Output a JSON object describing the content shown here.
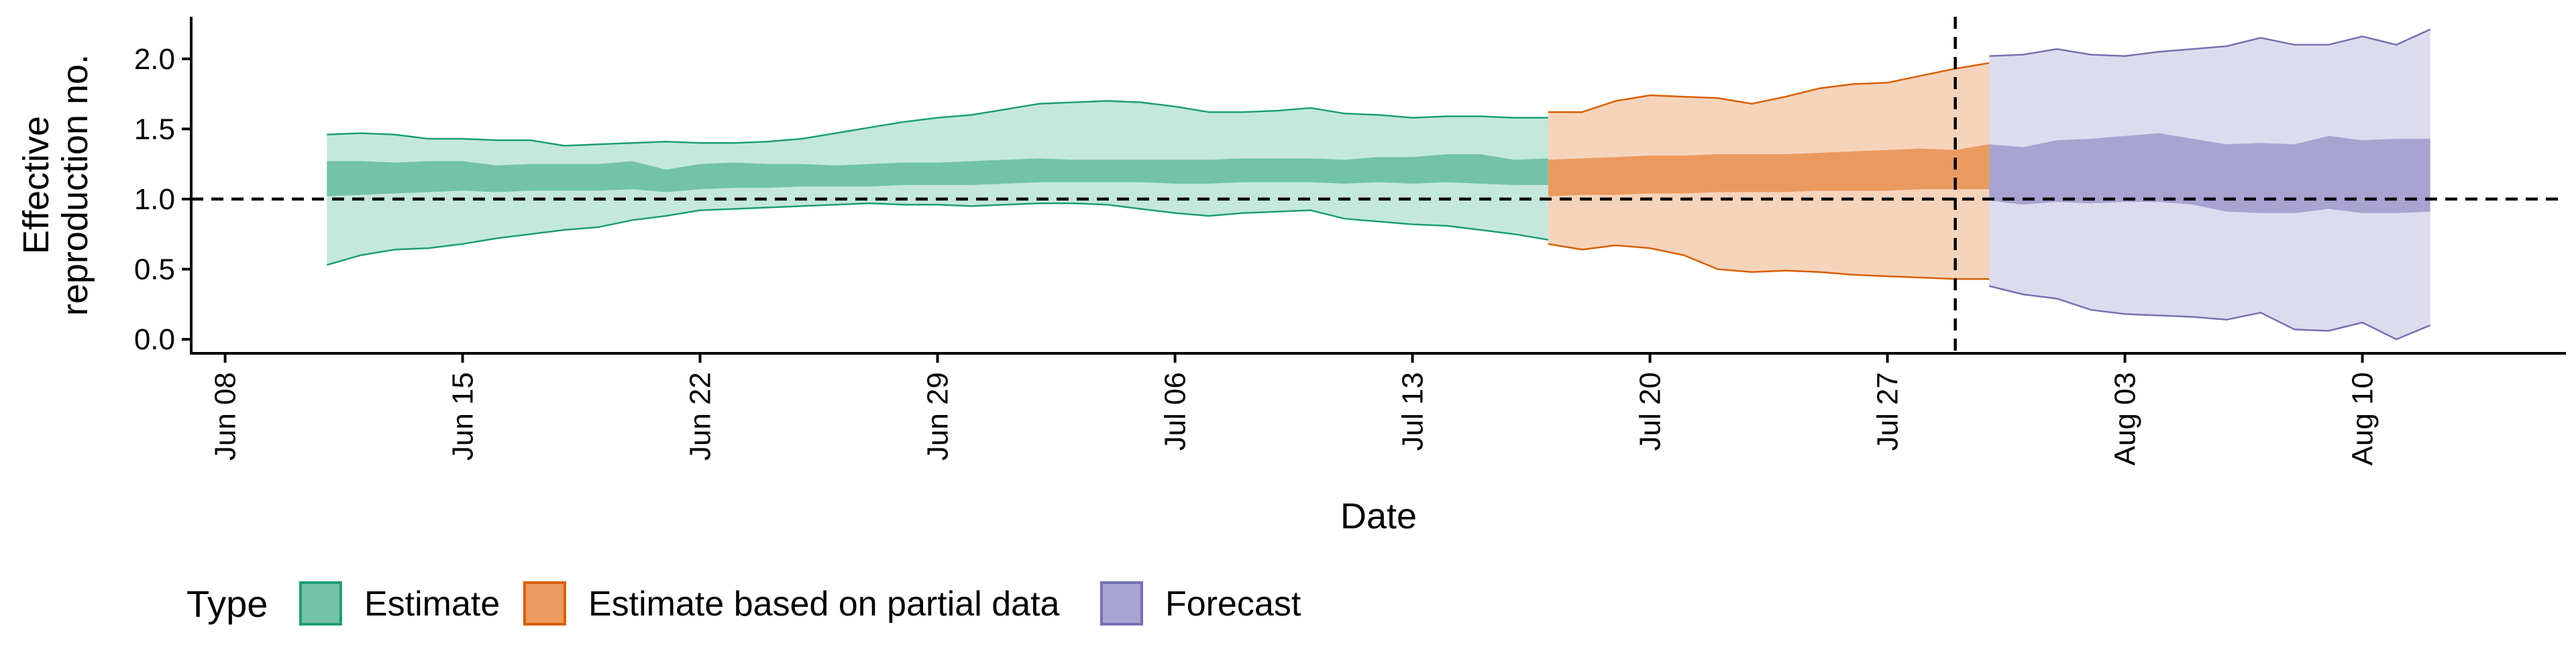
{
  "chart_data": {
    "type": "area",
    "title": "",
    "xlabel": "Date",
    "ylabel_lines": [
      "Effective",
      "reproduction no."
    ],
    "ylim": [
      -0.1,
      2.3
    ],
    "xlim": [
      "2020-06-07",
      "2020-08-16"
    ],
    "y_ticks": [
      {
        "value": 0.0,
        "label": "0.0"
      },
      {
        "value": 0.5,
        "label": "0.5"
      },
      {
        "value": 1.0,
        "label": "1.0"
      },
      {
        "value": 1.5,
        "label": "1.5"
      },
      {
        "value": 2.0,
        "label": "2.0"
      }
    ],
    "x_ticks": [
      {
        "date": "2020-06-08",
        "label": "Jun 08"
      },
      {
        "date": "2020-06-15",
        "label": "Jun 15"
      },
      {
        "date": "2020-06-22",
        "label": "Jun 22"
      },
      {
        "date": "2020-06-29",
        "label": "Jun 29"
      },
      {
        "date": "2020-07-06",
        "label": "Jul 06"
      },
      {
        "date": "2020-07-13",
        "label": "Jul 13"
      },
      {
        "date": "2020-07-20",
        "label": "Jul 20"
      },
      {
        "date": "2020-07-27",
        "label": "Jul 27"
      },
      {
        "date": "2020-08-03",
        "label": "Aug 03"
      },
      {
        "date": "2020-08-10",
        "label": "Aug 10"
      }
    ],
    "reference_line_y": 1.0,
    "vertical_line_date": "2020-07-29",
    "grid": false,
    "legend": {
      "title": "Type",
      "position": "bottom",
      "entries": [
        {
          "label": "Estimate",
          "fill": "#72c3a8",
          "border": "#1b9e77"
        },
        {
          "label": "Estimate based on partial data",
          "fill": "#eb9a5f",
          "border": "#d95f02"
        },
        {
          "label": "Forecast",
          "fill": "#a8a3d1",
          "border": "#7570b3"
        }
      ]
    },
    "series": [
      {
        "name": "Estimate",
        "outer_color": "#c5e8dc",
        "inner_color": "#72c3a8",
        "line_color": "#1b9e77",
        "start_date": "2020-06-11",
        "outer_upper": [
          1.46,
          1.47,
          1.46,
          1.43,
          1.43,
          1.42,
          1.42,
          1.38,
          1.39,
          1.4,
          1.41,
          1.4,
          1.4,
          1.41,
          1.43,
          1.47,
          1.51,
          1.55,
          1.58,
          1.6,
          1.64,
          1.68,
          1.69,
          1.7,
          1.69,
          1.66,
          1.62,
          1.62,
          1.63,
          1.65,
          1.61,
          1.6,
          1.58,
          1.59,
          1.59,
          1.58,
          1.58
        ],
        "outer_lower": [
          0.53,
          0.6,
          0.64,
          0.65,
          0.68,
          0.72,
          0.75,
          0.78,
          0.8,
          0.85,
          0.88,
          0.92,
          0.93,
          0.94,
          0.95,
          0.96,
          0.97,
          0.96,
          0.96,
          0.95,
          0.96,
          0.97,
          0.97,
          0.96,
          0.93,
          0.9,
          0.88,
          0.9,
          0.91,
          0.92,
          0.86,
          0.84,
          0.82,
          0.81,
          0.78,
          0.75,
          0.71
        ],
        "inner_upper": [
          1.27,
          1.27,
          1.26,
          1.27,
          1.27,
          1.24,
          1.25,
          1.25,
          1.25,
          1.27,
          1.21,
          1.25,
          1.26,
          1.25,
          1.25,
          1.24,
          1.25,
          1.26,
          1.26,
          1.27,
          1.28,
          1.29,
          1.28,
          1.28,
          1.28,
          1.28,
          1.28,
          1.29,
          1.29,
          1.29,
          1.28,
          1.3,
          1.3,
          1.32,
          1.32,
          1.28,
          1.29
        ],
        "inner_lower": [
          1.02,
          1.03,
          1.04,
          1.05,
          1.06,
          1.05,
          1.06,
          1.06,
          1.06,
          1.07,
          1.05,
          1.07,
          1.08,
          1.08,
          1.09,
          1.09,
          1.09,
          1.1,
          1.1,
          1.1,
          1.11,
          1.12,
          1.12,
          1.12,
          1.12,
          1.11,
          1.11,
          1.12,
          1.12,
          1.12,
          1.11,
          1.12,
          1.11,
          1.12,
          1.11,
          1.1,
          1.1
        ]
      },
      {
        "name": "Estimate based on partial data",
        "outer_color": "#f6d4bb",
        "inner_color": "#eb9a5f",
        "line_color": "#d95f02",
        "start_date": "2020-07-17",
        "outer_upper": [
          1.62,
          1.62,
          1.7,
          1.74,
          1.73,
          1.72,
          1.68,
          1.73,
          1.79,
          1.82,
          1.83,
          1.88,
          1.93,
          1.97,
          2.01
        ],
        "outer_lower": [
          0.68,
          0.64,
          0.67,
          0.65,
          0.6,
          0.5,
          0.48,
          0.49,
          0.48,
          0.46,
          0.45,
          0.44,
          0.43,
          0.43,
          0.42
        ],
        "inner_upper": [
          1.28,
          1.29,
          1.3,
          1.31,
          1.31,
          1.32,
          1.32,
          1.32,
          1.33,
          1.34,
          1.35,
          1.36,
          1.35,
          1.39,
          1.39
        ],
        "inner_lower": [
          1.02,
          1.03,
          1.03,
          1.04,
          1.04,
          1.05,
          1.05,
          1.05,
          1.06,
          1.06,
          1.06,
          1.07,
          1.07,
          1.07,
          1.07
        ]
      },
      {
        "name": "Forecast",
        "outer_color": "#dddcee",
        "inner_color": "#a8a3d1",
        "line_color": "#7570b3",
        "start_date": "2020-07-30",
        "outer_upper": [
          2.02,
          2.03,
          2.07,
          2.03,
          2.02,
          2.05,
          2.07,
          2.09,
          2.15,
          2.1,
          2.1,
          2.16,
          2.1,
          2.21
        ],
        "outer_lower": [
          0.38,
          0.32,
          0.29,
          0.21,
          0.18,
          0.17,
          0.16,
          0.14,
          0.19,
          0.07,
          0.06,
          0.12,
          0.0,
          0.1
        ],
        "inner_upper": [
          1.39,
          1.37,
          1.42,
          1.43,
          1.45,
          1.47,
          1.43,
          1.39,
          1.4,
          1.39,
          1.45,
          1.42,
          1.43,
          1.43
        ],
        "inner_lower": [
          0.99,
          0.96,
          0.98,
          0.97,
          0.98,
          0.98,
          0.96,
          0.91,
          0.9,
          0.9,
          0.93,
          0.9,
          0.9,
          0.91
        ]
      }
    ]
  }
}
